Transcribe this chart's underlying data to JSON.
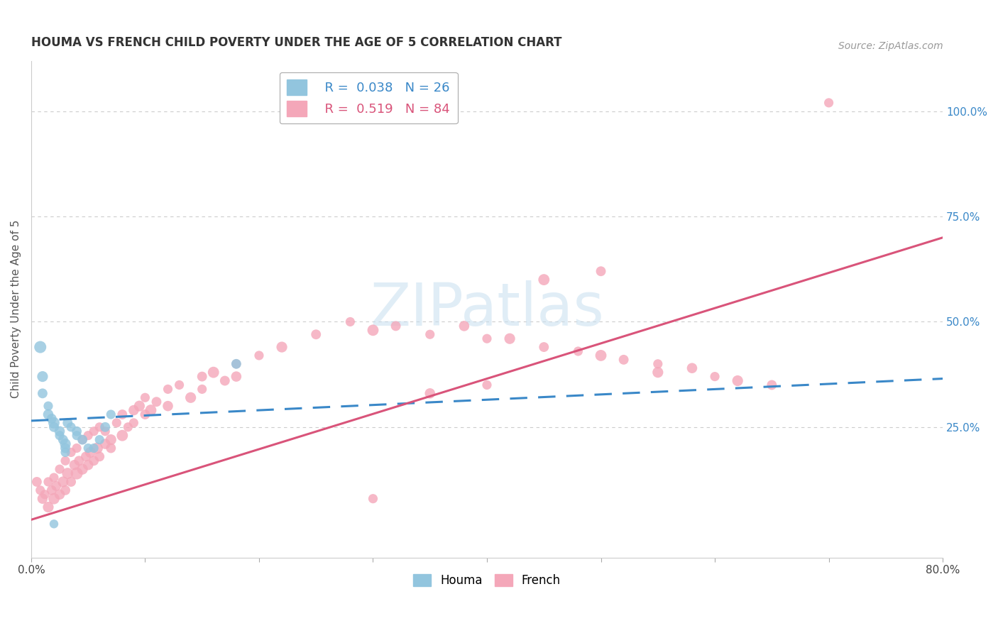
{
  "title": "HOUMA VS FRENCH CHILD POVERTY UNDER THE AGE OF 5 CORRELATION CHART",
  "source": "Source: ZipAtlas.com",
  "ylabel": "Child Poverty Under the Age of 5",
  "ytick_labels": [
    "100.0%",
    "75.0%",
    "50.0%",
    "25.0%"
  ],
  "ytick_values": [
    1.0,
    0.75,
    0.5,
    0.25
  ],
  "houma_color": "#92c5de",
  "french_color": "#f4a7b9",
  "houma_line_color": "#3a88c8",
  "french_line_color": "#d9547a",
  "houma_scatter_x": [
    0.008,
    0.01,
    0.01,
    0.015,
    0.015,
    0.018,
    0.02,
    0.02,
    0.025,
    0.025,
    0.028,
    0.03,
    0.03,
    0.03,
    0.032,
    0.035,
    0.04,
    0.04,
    0.045,
    0.05,
    0.055,
    0.06,
    0.065,
    0.07,
    0.18,
    0.02
  ],
  "houma_scatter_y": [
    0.44,
    0.37,
    0.33,
    0.3,
    0.28,
    0.27,
    0.26,
    0.25,
    0.24,
    0.23,
    0.22,
    0.21,
    0.2,
    0.19,
    0.26,
    0.25,
    0.24,
    0.23,
    0.22,
    0.2,
    0.2,
    0.22,
    0.25,
    0.28,
    0.4,
    0.02
  ],
  "houma_scatter_sizes": [
    150,
    120,
    100,
    90,
    110,
    100,
    130,
    100,
    110,
    90,
    100,
    120,
    100,
    90,
    100,
    90,
    100,
    90,
    100,
    90,
    90,
    90,
    100,
    90,
    100,
    80
  ],
  "french_scatter_x": [
    0.005,
    0.008,
    0.01,
    0.012,
    0.015,
    0.015,
    0.018,
    0.02,
    0.02,
    0.022,
    0.025,
    0.025,
    0.028,
    0.03,
    0.03,
    0.032,
    0.035,
    0.035,
    0.038,
    0.04,
    0.04,
    0.042,
    0.045,
    0.045,
    0.048,
    0.05,
    0.05,
    0.052,
    0.055,
    0.055,
    0.058,
    0.06,
    0.06,
    0.065,
    0.065,
    0.07,
    0.07,
    0.075,
    0.08,
    0.08,
    0.085,
    0.09,
    0.09,
    0.095,
    0.1,
    0.1,
    0.105,
    0.11,
    0.12,
    0.12,
    0.13,
    0.14,
    0.15,
    0.15,
    0.16,
    0.17,
    0.18,
    0.18,
    0.2,
    0.22,
    0.25,
    0.28,
    0.3,
    0.32,
    0.35,
    0.38,
    0.4,
    0.42,
    0.45,
    0.48,
    0.5,
    0.52,
    0.55,
    0.58,
    0.6,
    0.62,
    0.65,
    0.7,
    0.45,
    0.5,
    0.4,
    0.35,
    0.3,
    0.55
  ],
  "french_scatter_y": [
    0.12,
    0.1,
    0.08,
    0.09,
    0.06,
    0.12,
    0.1,
    0.08,
    0.13,
    0.11,
    0.09,
    0.15,
    0.12,
    0.1,
    0.17,
    0.14,
    0.12,
    0.19,
    0.16,
    0.14,
    0.2,
    0.17,
    0.15,
    0.22,
    0.18,
    0.16,
    0.23,
    0.19,
    0.17,
    0.24,
    0.2,
    0.18,
    0.25,
    0.21,
    0.24,
    0.22,
    0.2,
    0.26,
    0.23,
    0.28,
    0.25,
    0.29,
    0.26,
    0.3,
    0.28,
    0.32,
    0.29,
    0.31,
    0.34,
    0.3,
    0.35,
    0.32,
    0.37,
    0.34,
    0.38,
    0.36,
    0.4,
    0.37,
    0.42,
    0.44,
    0.47,
    0.5,
    0.48,
    0.49,
    0.47,
    0.49,
    0.46,
    0.46,
    0.44,
    0.43,
    0.42,
    0.41,
    0.4,
    0.39,
    0.37,
    0.36,
    0.35,
    1.02,
    0.6,
    0.62,
    0.35,
    0.33,
    0.08,
    0.38
  ],
  "french_scatter_sizes": [
    100,
    90,
    110,
    90,
    120,
    90,
    100,
    130,
    90,
    100,
    110,
    90,
    120,
    100,
    90,
    130,
    100,
    90,
    110,
    150,
    90,
    100,
    120,
    90,
    100,
    110,
    90,
    120,
    100,
    90,
    130,
    100,
    90,
    110,
    90,
    120,
    100,
    90,
    130,
    100,
    90,
    110,
    90,
    120,
    100,
    90,
    130,
    100,
    90,
    110,
    90,
    120,
    100,
    90,
    130,
    100,
    90,
    110,
    90,
    120,
    100,
    90,
    130,
    100,
    90,
    110,
    90,
    120,
    100,
    90,
    130,
    100,
    90,
    110,
    90,
    120,
    100,
    90,
    130,
    100,
    90,
    110,
    90,
    120
  ],
  "houma_trend_x": [
    0.0,
    0.8
  ],
  "houma_trend_y": [
    0.265,
    0.365
  ],
  "french_trend_x": [
    0.0,
    0.8
  ],
  "french_trend_y": [
    0.03,
    0.7
  ],
  "xlim": [
    0.0,
    0.8
  ],
  "ylim": [
    -0.06,
    1.12
  ],
  "grid_color": "#cccccc",
  "background_color": "#ffffff"
}
